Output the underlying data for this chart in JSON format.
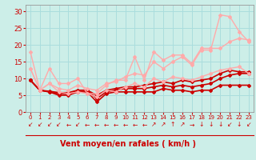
{
  "background_color": "#cceee8",
  "grid_color": "#aadddd",
  "line_color_dark": "#cc0000",
  "xlabel": "Vent moyen/en rafales ( km/h )",
  "ylim": [
    0,
    32
  ],
  "xlim": [
    -0.5,
    23.5
  ],
  "yticks": [
    0,
    5,
    10,
    15,
    20,
    25,
    30
  ],
  "xticks": [
    0,
    1,
    2,
    3,
    4,
    5,
    6,
    7,
    8,
    9,
    10,
    11,
    12,
    13,
    14,
    15,
    16,
    17,
    18,
    19,
    20,
    21,
    22,
    23
  ],
  "series": [
    {
      "x": [
        0,
        1,
        2,
        3,
        4,
        5,
        6,
        7,
        8,
        9,
        10,
        11,
        12,
        13,
        14,
        15,
        16,
        17,
        18,
        19,
        20,
        21,
        22,
        23
      ],
      "y": [
        9.5,
        6.5,
        6.0,
        5.0,
        5.0,
        6.0,
        6.0,
        3.0,
        5.5,
        6.0,
        6.0,
        6.0,
        6.0,
        6.0,
        7.0,
        6.5,
        6.5,
        6.0,
        6.5,
        6.5,
        8.0,
        8.0,
        8.0,
        8.0
      ],
      "color": "#cc0000",
      "lw": 1.2,
      "marker": "D",
      "ms": 2.0
    },
    {
      "x": [
        0,
        1,
        2,
        3,
        4,
        5,
        6,
        7,
        8,
        9,
        10,
        11,
        12,
        13,
        14,
        15,
        16,
        17,
        18,
        19,
        20,
        21,
        22,
        23
      ],
      "y": [
        9.5,
        6.5,
        6.0,
        5.5,
        5.5,
        6.5,
        6.5,
        4.0,
        6.0,
        6.5,
        7.0,
        7.0,
        7.0,
        7.5,
        8.0,
        7.5,
        8.0,
        7.5,
        8.0,
        8.5,
        10.0,
        11.0,
        11.5,
        11.5
      ],
      "color": "#cc0000",
      "lw": 1.2,
      "marker": "D",
      "ms": 2.0
    },
    {
      "x": [
        0,
        1,
        2,
        3,
        4,
        5,
        6,
        7,
        8,
        9,
        10,
        11,
        12,
        13,
        14,
        15,
        16,
        17,
        18,
        19,
        20,
        21,
        22,
        23
      ],
      "y": [
        9.5,
        6.5,
        6.2,
        5.8,
        5.8,
        6.5,
        6.5,
        5.0,
        6.5,
        7.0,
        7.5,
        7.5,
        8.0,
        8.5,
        9.0,
        8.5,
        9.5,
        9.0,
        9.5,
        10.0,
        11.5,
        12.5,
        12.0,
        12.0
      ],
      "color": "#cc0000",
      "lw": 1.2,
      "marker": "D",
      "ms": 2.0
    },
    {
      "x": [
        0,
        1,
        2,
        3,
        4,
        5,
        6,
        7,
        8,
        9,
        10,
        11,
        12,
        13,
        14,
        15,
        16,
        17,
        18,
        19,
        20,
        21,
        22,
        23
      ],
      "y": [
        18.0,
        6.5,
        13.0,
        8.5,
        8.5,
        10.0,
        5.5,
        5.5,
        8.0,
        9.5,
        9.5,
        16.5,
        9.5,
        18.0,
        15.5,
        17.0,
        17.0,
        14.5,
        19.0,
        19.0,
        19.0,
        21.0,
        22.0,
        21.5
      ],
      "color": "#ffaaaa",
      "lw": 1.0,
      "marker": "D",
      "ms": 2.0
    },
    {
      "x": [
        0,
        1,
        2,
        3,
        4,
        5,
        6,
        7,
        8,
        9,
        10,
        11,
        12,
        13,
        14,
        15,
        16,
        17,
        18,
        19,
        20,
        21,
        22,
        23
      ],
      "y": [
        13.0,
        6.5,
        8.5,
        6.0,
        5.5,
        6.0,
        5.5,
        4.5,
        6.5,
        6.0,
        7.5,
        8.5,
        7.5,
        10.0,
        9.0,
        10.5,
        10.0,
        9.5,
        10.5,
        11.5,
        12.5,
        13.0,
        13.5,
        11.5
      ],
      "color": "#ffaaaa",
      "lw": 1.0,
      "marker": "D",
      "ms": 2.0
    },
    {
      "x": [
        0,
        1,
        2,
        3,
        4,
        5,
        6,
        7,
        8,
        9,
        10,
        11,
        12,
        13,
        14,
        15,
        16,
        17,
        18,
        19,
        20,
        21,
        22,
        23
      ],
      "y": [
        13.0,
        6.5,
        8.5,
        7.0,
        6.5,
        8.0,
        7.0,
        6.5,
        8.5,
        9.0,
        10.5,
        11.5,
        11.0,
        15.0,
        13.0,
        15.0,
        16.5,
        14.0,
        18.5,
        18.5,
        29.0,
        28.5,
        24.0,
        21.0
      ],
      "color": "#ffaaaa",
      "lw": 1.0,
      "marker": "D",
      "ms": 2.0
    }
  ],
  "wind_arrows": [
    "↙",
    "↙",
    "↙",
    "↙",
    "←",
    "↙",
    "←",
    "←",
    "←",
    "←",
    "←",
    "←",
    "←",
    "↗",
    "↗",
    "↑",
    "↗",
    "→",
    "↓",
    "↓",
    "↓",
    "↙",
    "↓",
    "↙"
  ]
}
